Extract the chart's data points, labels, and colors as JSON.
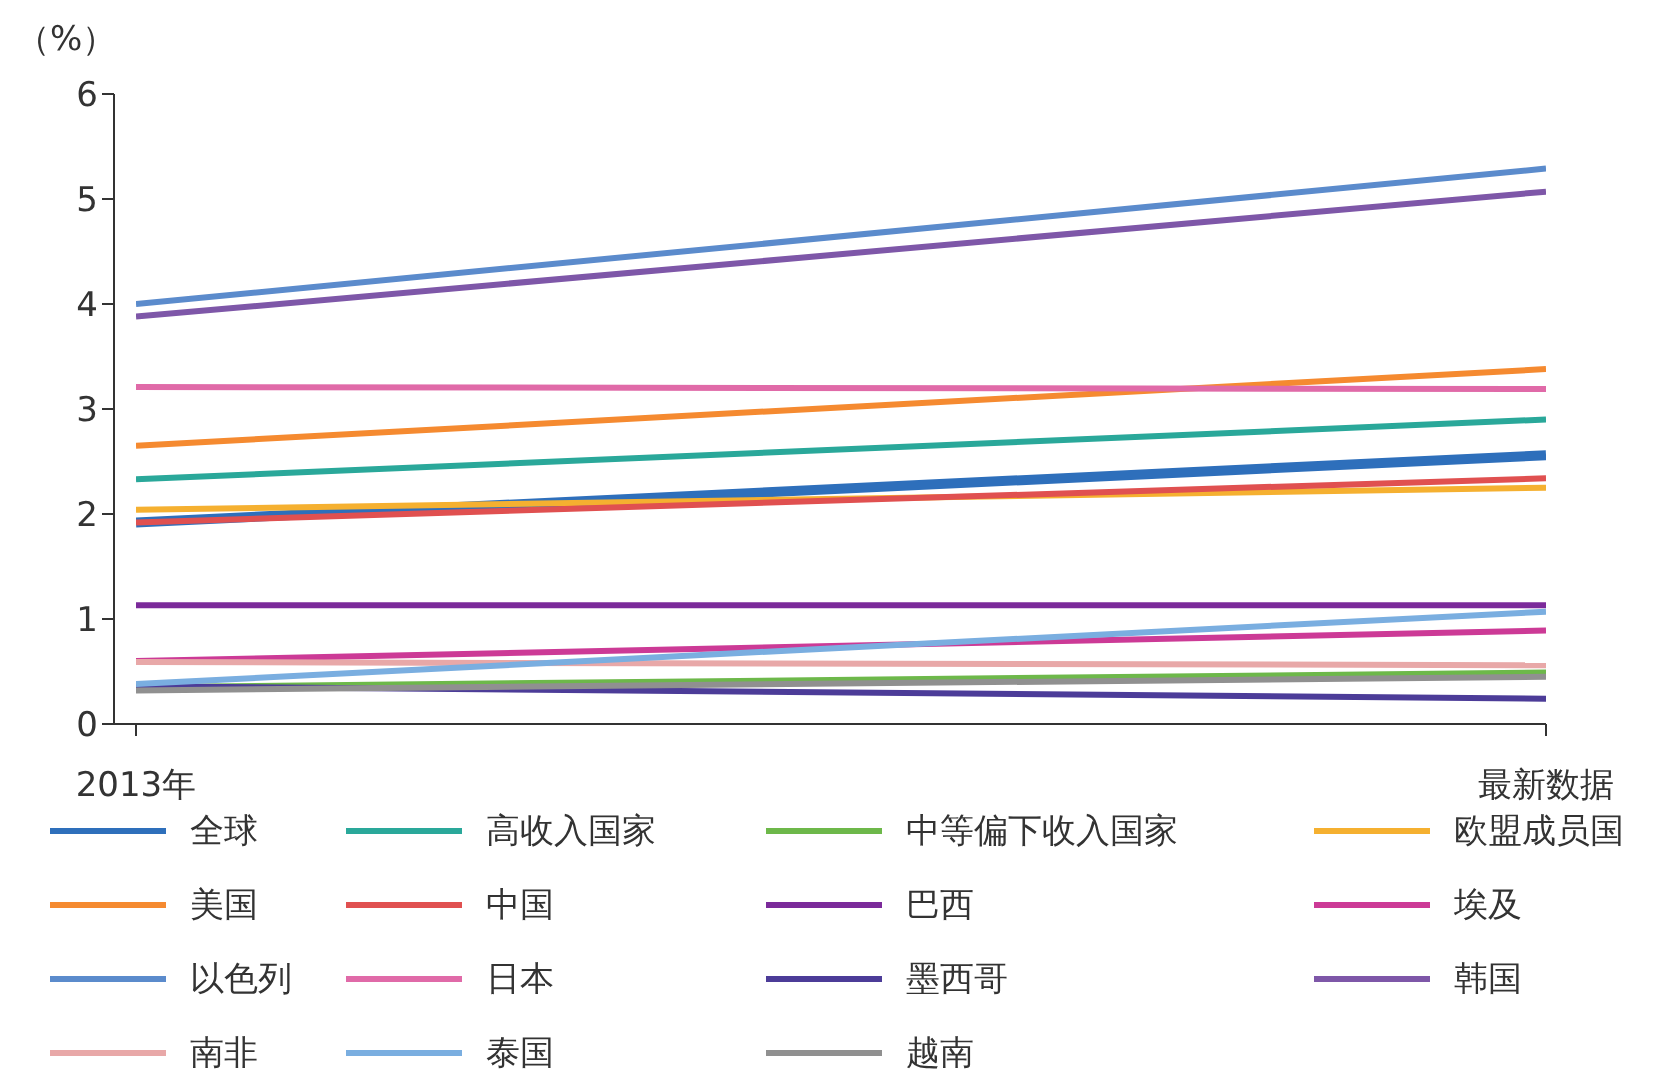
{
  "chart_data": {
    "type": "line",
    "ylabel": "（%）",
    "categories": [
      "2013年",
      "最新数据"
    ],
    "ylim": [
      0,
      6
    ],
    "yticks": [
      0,
      1,
      2,
      3,
      4,
      5,
      6
    ],
    "grid": false,
    "legend": "bottom",
    "marker": "none",
    "series": [
      {
        "name": "全球",
        "color": "#2e6fbb",
        "values": [
          1.92,
          2.56
        ]
      },
      {
        "name": "高收入国家",
        "color": "#2aa89a",
        "values": [
          2.33,
          2.9
        ]
      },
      {
        "name": "中等偏下收入国家",
        "color": "#6db84a",
        "values": [
          0.35,
          0.49
        ]
      },
      {
        "name": "欧盟成员国",
        "color": "#f5b030",
        "values": [
          2.04,
          2.25
        ]
      },
      {
        "name": "美国",
        "color": "#f58a30",
        "values": [
          2.65,
          3.38
        ]
      },
      {
        "name": "中国",
        "color": "#e05050",
        "values": [
          1.92,
          2.34
        ]
      },
      {
        "name": "巴西",
        "color": "#7b2a9a",
        "values": [
          1.13,
          1.13
        ]
      },
      {
        "name": "埃及",
        "color": "#cc3a96",
        "values": [
          0.6,
          0.89
        ]
      },
      {
        "name": "以色列",
        "color": "#5b8bcc",
        "values": [
          4.0,
          5.29
        ]
      },
      {
        "name": "日本",
        "color": "#e06aa8",
        "values": [
          3.21,
          3.19
        ]
      },
      {
        "name": "墨西哥",
        "color": "#4c3c98",
        "values": [
          0.36,
          0.24
        ]
      },
      {
        "name": "韩国",
        "color": "#7e57a8",
        "values": [
          3.88,
          5.07
        ]
      },
      {
        "name": "南非",
        "color": "#e8a8a8",
        "values": [
          0.59,
          0.56
        ]
      },
      {
        "name": "泰国",
        "color": "#7aaee0",
        "values": [
          0.38,
          1.07
        ]
      },
      {
        "name": "越南",
        "color": "#909090",
        "values": [
          0.32,
          0.45
        ]
      }
    ]
  }
}
